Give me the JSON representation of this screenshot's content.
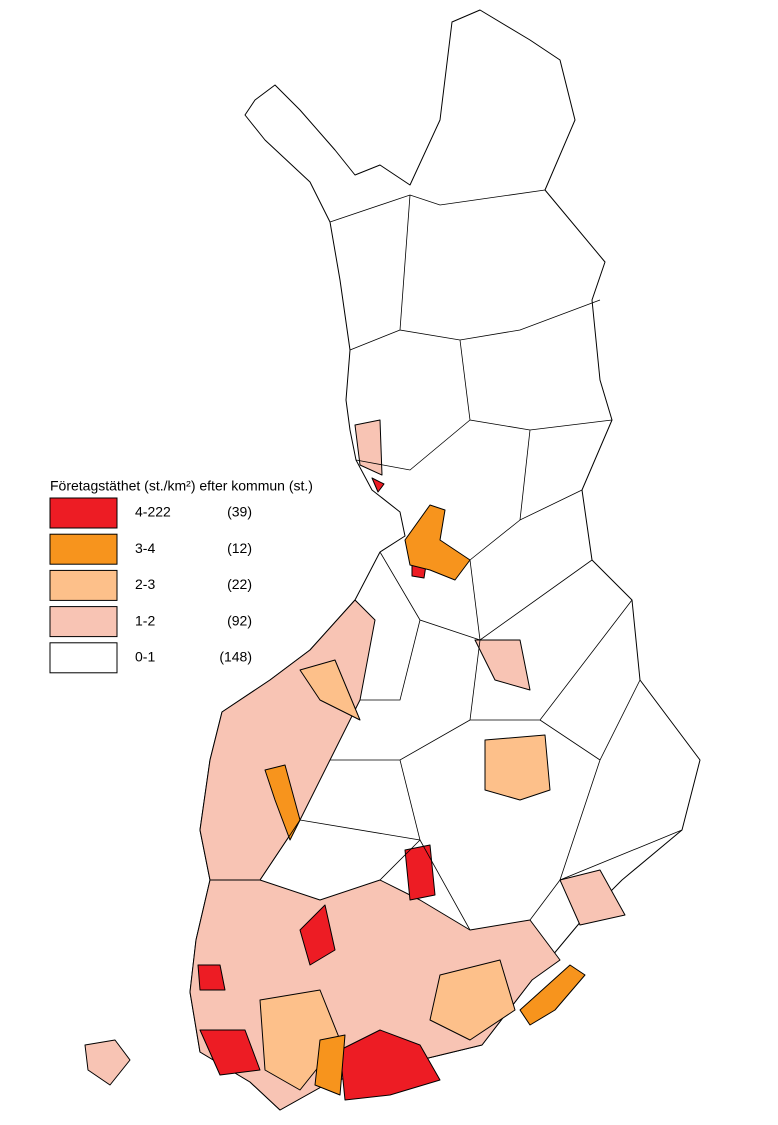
{
  "legend": {
    "title": "Företagstäthet (st./km²) efter kommun (st.)",
    "items": [
      {
        "label": "4-222",
        "count": "(39)",
        "color": "#ed1c24"
      },
      {
        "label": "3-4",
        "count": "(12)",
        "color": "#f7941d"
      },
      {
        "label": "2-3",
        "count": "(22)",
        "color": "#fdc08a"
      },
      {
        "label": "1-2",
        "count": "(92)",
        "color": "#f8c4b4"
      },
      {
        "label": "0-1",
        "count": "(148)",
        "color": "#ffffff"
      }
    ]
  }
}
